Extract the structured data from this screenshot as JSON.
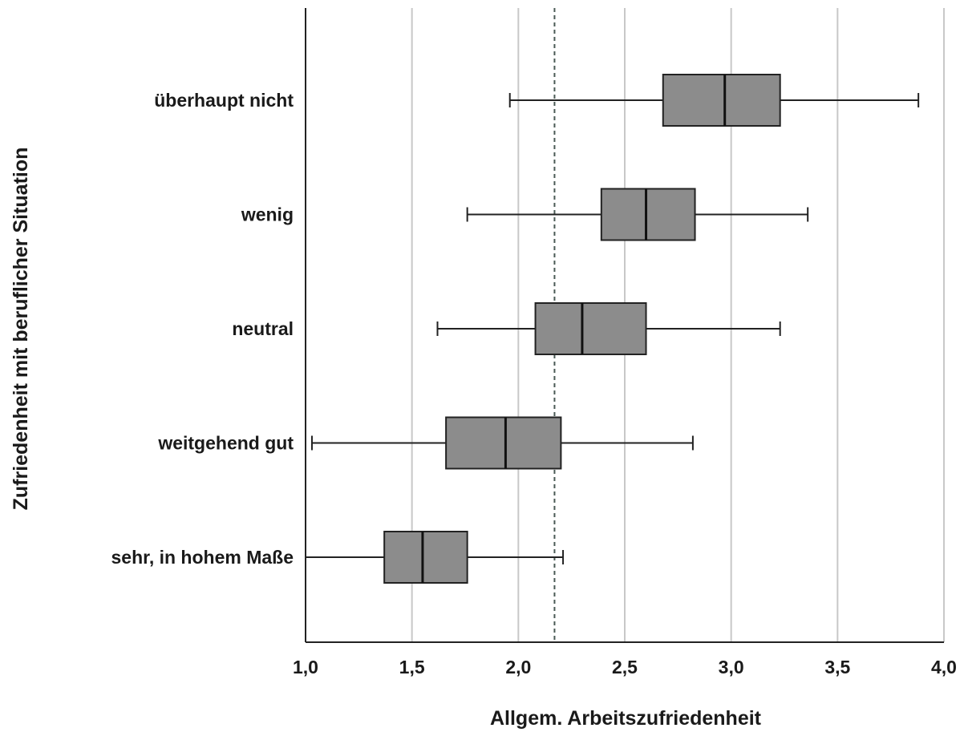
{
  "chart_data": {
    "type": "boxplot",
    "orientation": "horizontal",
    "xlabel": "Allgem. Arbeitszufriedenheit",
    "ylabel": "Zufriedenheit mit beruflicher Situation",
    "xlim": [
      1.0,
      4.0
    ],
    "xticks": [
      1.0,
      1.5,
      2.0,
      2.5,
      3.0,
      3.5,
      4.0
    ],
    "xtick_labels": [
      "1,0",
      "1,5",
      "2,0",
      "2,5",
      "3,0",
      "3,5",
      "4,0"
    ],
    "grid": "vertical",
    "reference_line": {
      "x": 2.17,
      "style": "dashed"
    },
    "categories": [
      "überhaupt nicht",
      "wenig",
      "neutral",
      "weitgehend gut",
      "sehr, in hohem Maße"
    ],
    "boxes": [
      {
        "category": "überhaupt nicht",
        "whisker_low": 1.96,
        "q1": 2.68,
        "median": 2.97,
        "q3": 3.23,
        "whisker_high": 3.88
      },
      {
        "category": "wenig",
        "whisker_low": 1.76,
        "q1": 2.39,
        "median": 2.6,
        "q3": 2.83,
        "whisker_high": 3.36
      },
      {
        "category": "neutral",
        "whisker_low": 1.62,
        "q1": 2.08,
        "median": 2.3,
        "q3": 2.6,
        "whisker_high": 3.23
      },
      {
        "category": "weitgehend gut",
        "whisker_low": 1.03,
        "q1": 1.66,
        "median": 1.94,
        "q3": 2.2,
        "whisker_high": 2.82
      },
      {
        "category": "sehr, in hohem Maße",
        "whisker_low": 1.0,
        "q1": 1.37,
        "median": 1.55,
        "q3": 1.76,
        "whisker_high": 2.21
      }
    ],
    "colors": {
      "box_fill": "#8c8c8c",
      "box_stroke": "#222222",
      "whisker": "#222222",
      "grid": "#c8c8c8",
      "axis": "#222222",
      "reference_line": "#4a5a55"
    }
  }
}
